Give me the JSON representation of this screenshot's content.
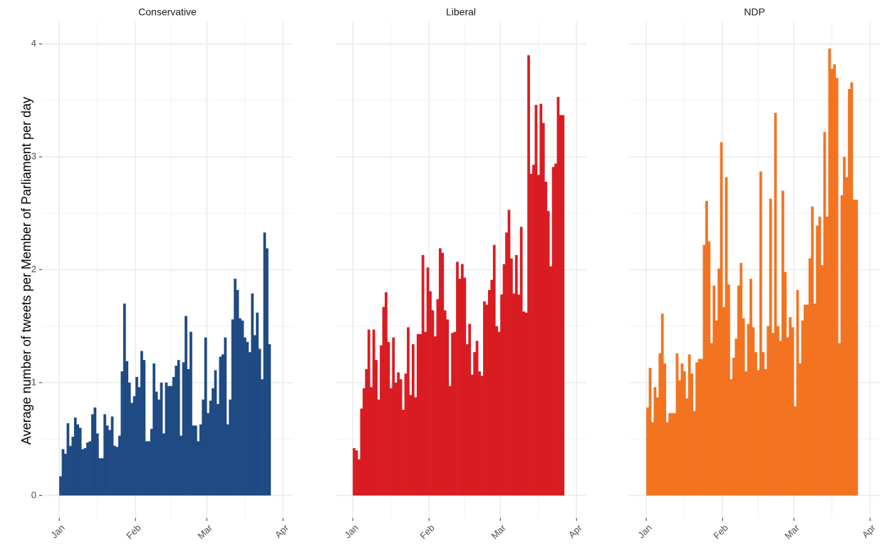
{
  "chart_data": [
    {
      "type": "bar",
      "title": "Conservative",
      "ylabel": "Average number of tweets per Member of Parliament per day",
      "color": "#1f4a83",
      "x": [
        0,
        1,
        2,
        3,
        4,
        5,
        6,
        7,
        8,
        9,
        10,
        11,
        12,
        13,
        14,
        15,
        16,
        17,
        18,
        19,
        20,
        21,
        22,
        23,
        24,
        25,
        26,
        27,
        28,
        29,
        30,
        31,
        32,
        33,
        34,
        35,
        36,
        37,
        38,
        39,
        40,
        41,
        42,
        43,
        44,
        45,
        46,
        47,
        48,
        49,
        50,
        51,
        52,
        53,
        54,
        55,
        56,
        57,
        58,
        59,
        60,
        61,
        62,
        63,
        64,
        65,
        66,
        67,
        68,
        69,
        70,
        71,
        72,
        73,
        74,
        75,
        76,
        77,
        78,
        79,
        80,
        81,
        82,
        83,
        84,
        85
      ],
      "values": [
        0.17,
        0.41,
        0.37,
        0.64,
        0.44,
        0.52,
        0.69,
        0.63,
        0.6,
        0.41,
        0.42,
        0.47,
        0.48,
        0.72,
        0.78,
        0.55,
        0.33,
        0.33,
        0.72,
        0.62,
        0.58,
        0.7,
        0.44,
        0.43,
        0.53,
        1.1,
        1.7,
        1.19,
        1.0,
        0.82,
        0.88,
        1.05,
        0.96,
        1.28,
        1.2,
        0.48,
        0.48,
        0.59,
        1.17,
        0.92,
        0.85,
        1.0,
        0.55,
        1.0,
        0.97,
        0.97,
        1.05,
        1.15,
        1.2,
        0.53,
        1.18,
        1.59,
        1.12,
        1.45,
        0.62,
        0.62,
        0.48,
        0.63,
        0.85,
        1.4,
        0.73,
        0.84,
        0.95,
        1.11,
        0.81,
        1.23,
        1.25,
        1.4,
        0.63,
        0.85,
        1.56,
        1.92,
        1.82,
        1.57,
        1.55,
        1.4,
        1.36,
        1.27,
        1.79,
        1.42,
        1.62,
        1.3,
        1.03,
        2.33,
        2.19,
        1.34
      ],
      "xlim": [
        -7,
        95
      ],
      "xticks": [
        {
          "value": 0,
          "label": "Jan"
        },
        {
          "value": 31,
          "label": "Feb"
        },
        {
          "value": 60,
          "label": "Mar"
        },
        {
          "value": 91,
          "label": "Apr"
        }
      ],
      "minor_xticks": [
        15.5,
        45.5,
        75.5
      ],
      "ylim": [
        -0.2,
        4.2
      ],
      "yticks": [
        0,
        1,
        2,
        3,
        4
      ],
      "minor_yticks": [
        0.5,
        1.5,
        2.5,
        3.5
      ],
      "grid": true
    },
    {
      "type": "bar",
      "title": "Liberal",
      "color": "#d91c22",
      "x": [
        0,
        1,
        2,
        3,
        4,
        5,
        6,
        7,
        8,
        9,
        10,
        11,
        12,
        13,
        14,
        15,
        16,
        17,
        18,
        19,
        20,
        21,
        22,
        23,
        24,
        25,
        26,
        27,
        28,
        29,
        30,
        31,
        32,
        33,
        34,
        35,
        36,
        37,
        38,
        39,
        40,
        41,
        42,
        43,
        44,
        45,
        46,
        47,
        48,
        49,
        50,
        51,
        52,
        53,
        54,
        55,
        56,
        57,
        58,
        59,
        60,
        61,
        62,
        63,
        64,
        65,
        66,
        67,
        68,
        69,
        70,
        71,
        72,
        73,
        74,
        75,
        76,
        77,
        78,
        79,
        80,
        81,
        82,
        83,
        84,
        85
      ],
      "values": [
        0.42,
        0.4,
        0.32,
        0.77,
        0.95,
        1.12,
        1.47,
        0.96,
        1.47,
        1.2,
        0.85,
        1.33,
        1.67,
        1.8,
        1.36,
        0.95,
        1.4,
        1.0,
        1.09,
        1.03,
        0.76,
        1.08,
        1.49,
        0.89,
        1.34,
        0.87,
        1.43,
        1.43,
        2.13,
        1.45,
        2.02,
        1.81,
        1.64,
        1.41,
        1.74,
        2.19,
        2.15,
        1.64,
        1.56,
        0.97,
        1.44,
        1.45,
        2.07,
        1.92,
        2.05,
        1.93,
        1.34,
        1.52,
        1.07,
        1.27,
        1.37,
        1.1,
        1.06,
        1.72,
        1.69,
        1.82,
        1.91,
        2.22,
        1.5,
        1.45,
        1.78,
        2.05,
        2.33,
        2.53,
        2.1,
        1.79,
        2.13,
        1.78,
        2.38,
        1.63,
        1.62,
        3.9,
        2.85,
        2.93,
        3.46,
        2.84,
        3.47,
        3.3,
        2.78,
        2.52,
        2.03,
        2.91,
        2.94,
        3.53,
        3.37,
        3.37
      ],
      "xlim": [
        -7,
        95
      ],
      "xticks": [
        {
          "value": 0,
          "label": "Jan"
        },
        {
          "value": 31,
          "label": "Feb"
        },
        {
          "value": 60,
          "label": "Mar"
        },
        {
          "value": 91,
          "label": "Apr"
        }
      ],
      "minor_xticks": [
        15.5,
        45.5,
        75.5
      ],
      "ylim": [
        -0.2,
        4.2
      ],
      "yticks": [
        0,
        1,
        2,
        3,
        4
      ],
      "minor_yticks": [
        0.5,
        1.5,
        2.5,
        3.5
      ],
      "grid": true
    },
    {
      "type": "bar",
      "title": "NDP",
      "color": "#f37321",
      "x": [
        0,
        1,
        2,
        3,
        4,
        5,
        6,
        7,
        8,
        9,
        10,
        11,
        12,
        13,
        14,
        15,
        16,
        17,
        18,
        19,
        20,
        21,
        22,
        23,
        24,
        25,
        26,
        27,
        28,
        29,
        30,
        31,
        32,
        33,
        34,
        35,
        36,
        37,
        38,
        39,
        40,
        41,
        42,
        43,
        44,
        45,
        46,
        47,
        48,
        49,
        50,
        51,
        52,
        53,
        54,
        55,
        56,
        57,
        58,
        59,
        60,
        61,
        62,
        63,
        64,
        65,
        66,
        67,
        68,
        69,
        70,
        71,
        72,
        73,
        74,
        75,
        76,
        77,
        78,
        79,
        80,
        81,
        82,
        83,
        84,
        85
      ],
      "values": [
        0.78,
        1.13,
        0.65,
        0.96,
        0.87,
        1.26,
        1.61,
        1.17,
        0.65,
        0.73,
        0.73,
        0.73,
        1.26,
        1.02,
        1.17,
        1.1,
        0.86,
        1.25,
        1.08,
        0.75,
        1.18,
        1.21,
        1.21,
        2.22,
        2.61,
        2.25,
        1.35,
        1.86,
        1.55,
        2.01,
        3.13,
        1.67,
        2.82,
        1.87,
        1.03,
        1.22,
        1.39,
        1.86,
        2.06,
        1.57,
        1.1,
        1.52,
        1.92,
        1.49,
        1.27,
        1.11,
        2.87,
        1.27,
        1.12,
        1.5,
        2.63,
        1.44,
        3.39,
        1.5,
        1.37,
        2.7,
        1.98,
        1.4,
        1.58,
        1.49,
        0.79,
        1.82,
        1.17,
        1.55,
        1.69,
        1.69,
        2.1,
        2.56,
        1.7,
        2.39,
        2.47,
        2.04,
        3.22,
        2.47,
        3.96,
        3.78,
        3.82,
        3.7,
        1.35,
        2.66,
        3.0,
        2.82,
        3.6,
        3.66,
        2.62,
        2.62
      ],
      "xlim": [
        -7,
        95
      ],
      "xticks": [
        {
          "value": 0,
          "label": "Jan"
        },
        {
          "value": 31,
          "label": "Feb"
        },
        {
          "value": 60,
          "label": "Mar"
        },
        {
          "value": 91,
          "label": "Apr"
        }
      ],
      "minor_xticks": [
        15.5,
        45.5,
        75.5
      ],
      "ylim": [
        -0.2,
        4.2
      ],
      "yticks": [
        0,
        1,
        2,
        3,
        4
      ],
      "minor_yticks": [
        0.5,
        1.5,
        2.5,
        3.5
      ],
      "grid": true
    }
  ]
}
